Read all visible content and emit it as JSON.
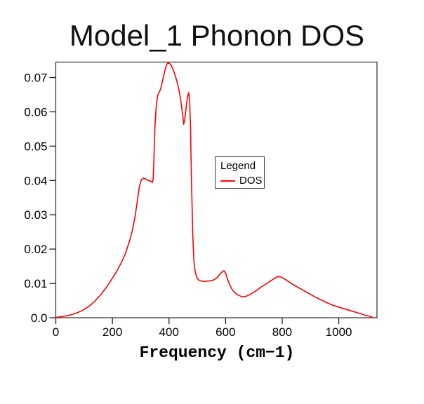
{
  "colors": {
    "background": "#ffffff",
    "axis": "#2b2b2b",
    "text": "#000000",
    "legend_border": "#3a3a3a",
    "line": "#ff0000"
  },
  "chart_data": {
    "type": "line",
    "title": "Model_1 Phonon DOS",
    "xlabel": "Frequency (cm−1)",
    "ylabel": "",
    "xlim": [
      0,
      1135
    ],
    "ylim": [
      0,
      0.0745
    ],
    "xticks": [
      0,
      200,
      400,
      600,
      800,
      1000
    ],
    "ytick_values": [
      0,
      0.01,
      0.02,
      0.03,
      0.04,
      0.05,
      0.06,
      0.07
    ],
    "ytick_labels": [
      "0.0",
      "0.01",
      "0.02",
      "0.03",
      "0.04",
      "0.05",
      "0.06",
      "0.07"
    ],
    "grid": false,
    "legend": {
      "title": "Legend",
      "position": "middle-right"
    },
    "series": [
      {
        "name": "DOS",
        "color": "#ff0000",
        "x": [
          0,
          20,
          40,
          60,
          80,
          100,
          120,
          140,
          160,
          180,
          200,
          215,
          230,
          245,
          260,
          270,
          280,
          288,
          295,
          302,
          310,
          318,
          326,
          334,
          341,
          344,
          347,
          350,
          353,
          356,
          360,
          365,
          370,
          377,
          385,
          392,
          397,
          403,
          410,
          417,
          424,
          431,
          438,
          444,
          449,
          452,
          455,
          459,
          463,
          467,
          470,
          473,
          476,
          478,
          481,
          484,
          488,
          492,
          497,
          503,
          510,
          520,
          530,
          540,
          550,
          560,
          570,
          580,
          588,
          594,
          600,
          607,
          614,
          622,
          630,
          640,
          650,
          660,
          670,
          682,
          695,
          710,
          725,
          740,
          755,
          770,
          781,
          790,
          800,
          812,
          825,
          840,
          855,
          870,
          885,
          900,
          915,
          930,
          945,
          960,
          980,
          1000,
          1020,
          1040,
          1060,
          1080,
          1095,
          1110,
          1120
        ],
        "y": [
          0.0001,
          0.0003,
          0.0006,
          0.001,
          0.0016,
          0.0024,
          0.0035,
          0.005,
          0.0068,
          0.009,
          0.0115,
          0.0135,
          0.0158,
          0.0185,
          0.0222,
          0.0252,
          0.0295,
          0.034,
          0.038,
          0.0402,
          0.0407,
          0.0404,
          0.04,
          0.0398,
          0.0394,
          0.0405,
          0.047,
          0.055,
          0.0595,
          0.0625,
          0.0648,
          0.0657,
          0.0665,
          0.069,
          0.0719,
          0.0738,
          0.0743,
          0.074,
          0.0732,
          0.0718,
          0.07,
          0.068,
          0.0651,
          0.0618,
          0.0586,
          0.0564,
          0.0574,
          0.0601,
          0.0628,
          0.0649,
          0.0656,
          0.0628,
          0.0558,
          0.0458,
          0.0345,
          0.0242,
          0.0166,
          0.0137,
          0.012,
          0.0111,
          0.0108,
          0.0106,
          0.0106,
          0.0107,
          0.0108,
          0.0111,
          0.0117,
          0.0127,
          0.0134,
          0.0137,
          0.013,
          0.0112,
          0.0097,
          0.0084,
          0.0075,
          0.0068,
          0.0064,
          0.0061,
          0.0062,
          0.0066,
          0.0072,
          0.008,
          0.0089,
          0.0097,
          0.0105,
          0.0113,
          0.0119,
          0.012,
          0.0117,
          0.0111,
          0.0104,
          0.0096,
          0.0089,
          0.0082,
          0.0075,
          0.0068,
          0.0061,
          0.0055,
          0.0049,
          0.0043,
          0.0036,
          0.0031,
          0.0026,
          0.0021,
          0.0016,
          0.0011,
          0.0007,
          0.0004,
          0.0001
        ]
      }
    ]
  }
}
